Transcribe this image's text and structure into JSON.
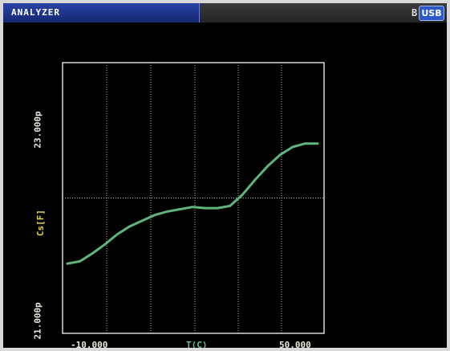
{
  "header": {
    "title": "ANALYZER",
    "mode_letter": "B",
    "usb_label": "USB"
  },
  "colors": {
    "title_bar": "#1e3590",
    "background": "#000000",
    "frame": "#d8d8d8",
    "grid": "#bdbdbd",
    "trace": "#5fb57a",
    "y_axis_label": "#e6d44a",
    "x_axis_label": "#5fc18a"
  },
  "chart_data": {
    "type": "line",
    "xlabel": "T(C)",
    "ylabel": "Cs[F]",
    "x_tick_labels": [
      "-10.000",
      "50.000"
    ],
    "y_tick_labels": [
      "21.000p",
      "23.000p"
    ],
    "xlim": [
      -10,
      50
    ],
    "ylim": [
      21.0,
      23.0
    ],
    "grid": true,
    "series": [
      {
        "x": [
          -10,
          -7,
          -4,
          -1,
          2,
          5,
          8,
          11,
          14,
          17,
          20,
          23,
          26,
          29,
          32,
          35,
          38,
          41,
          44,
          47,
          50
        ],
        "y": [
          21.41,
          21.43,
          21.5,
          21.58,
          21.67,
          21.74,
          21.79,
          21.84,
          21.87,
          21.89,
          21.91,
          21.9,
          21.9,
          21.92,
          22.02,
          22.15,
          22.27,
          22.37,
          22.44,
          22.47,
          22.47
        ]
      }
    ]
  },
  "labels": {
    "y_top": "23.000p",
    "y_bottom": "21.000p",
    "y_axis": "Cs[F]",
    "x_left": "-10.000",
    "x_right": "50.000",
    "x_axis": "T(C)"
  }
}
